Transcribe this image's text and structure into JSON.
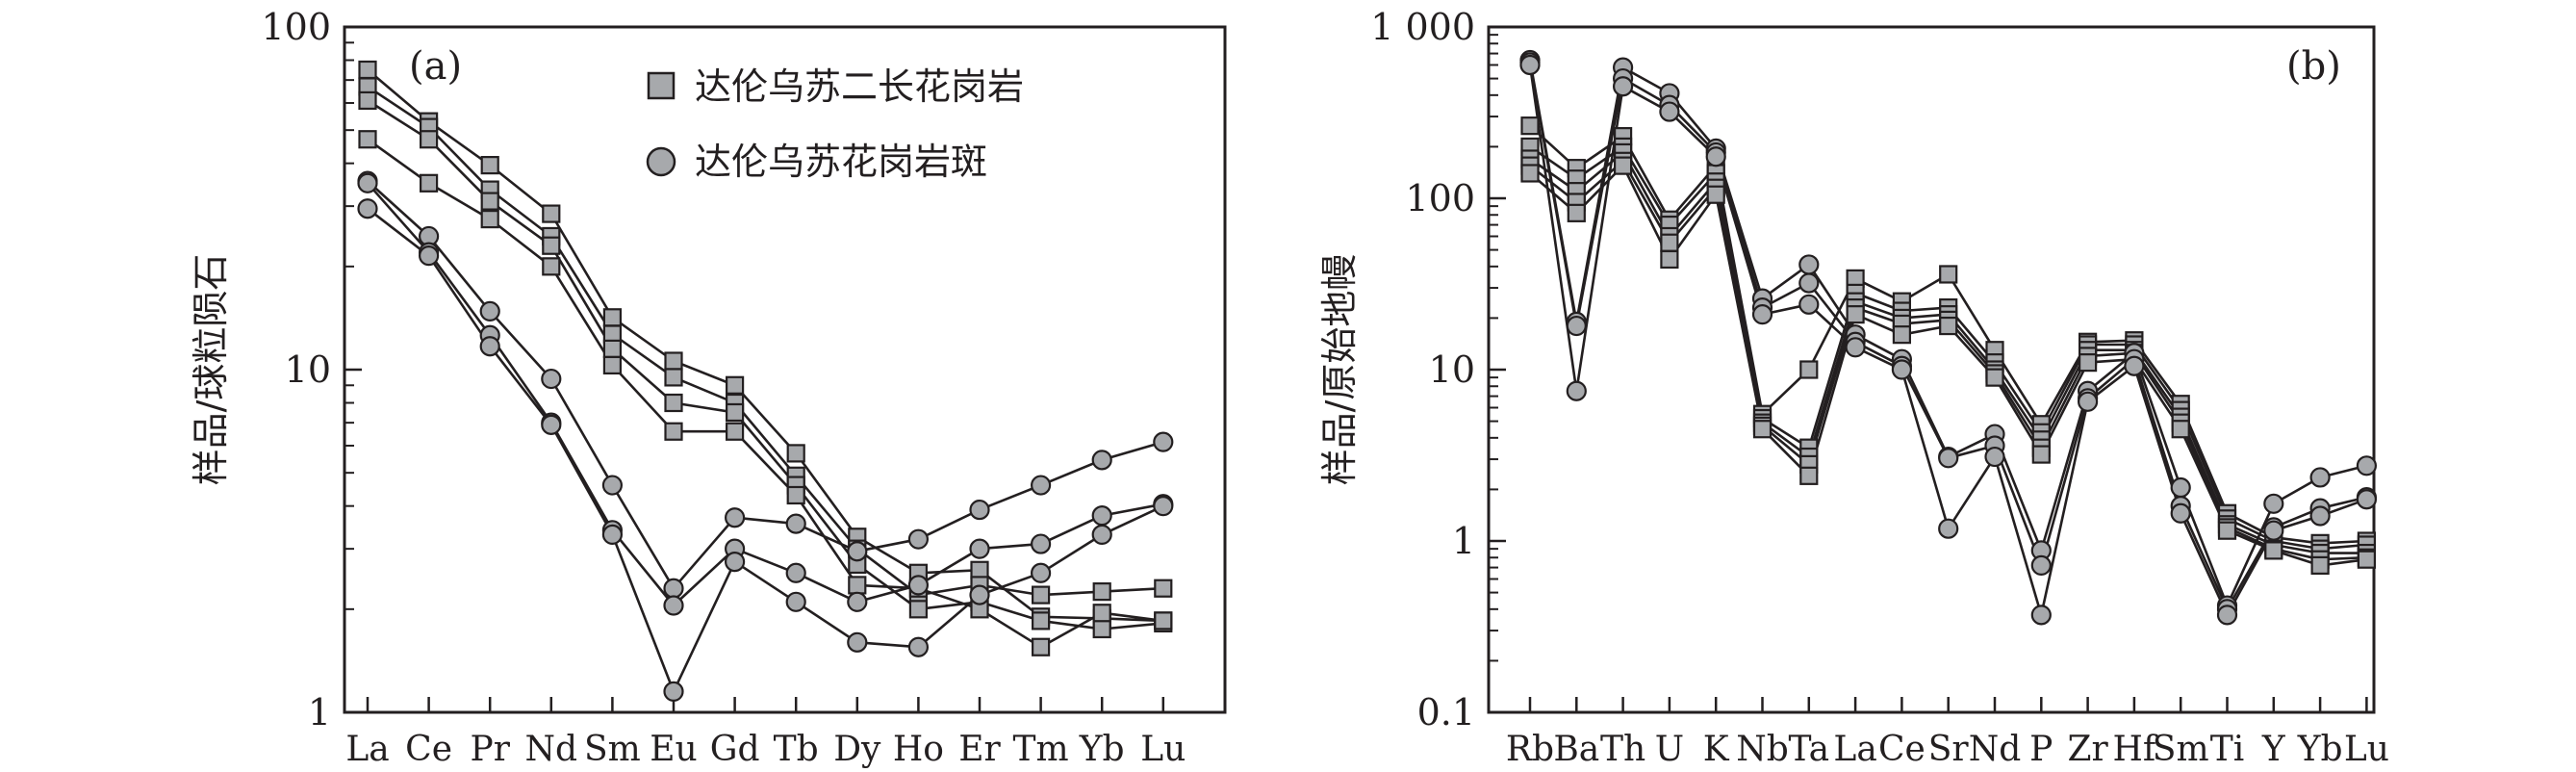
{
  "chart_data": [
    {
      "type": "line",
      "panel_label": "(a)",
      "ylabel": "样品/球粒陨石",
      "y_scale": "log",
      "ylim": [
        1,
        100
      ],
      "y_ticks": [
        1,
        10,
        100
      ],
      "y_tick_labels": [
        "1",
        "10",
        "100"
      ],
      "categories": [
        "La",
        "Ce",
        "Pr",
        "Nd",
        "Sm",
        "Eu",
        "Gd",
        "Tb",
        "Dy",
        "Ho",
        "Er",
        "Tm",
        "Yb",
        "Lu"
      ],
      "legend": [
        {
          "label": "达伦乌苏二长花岗岩",
          "marker": "square"
        },
        {
          "label": "达伦乌苏花岗岩斑",
          "marker": "circle"
        }
      ],
      "series": [
        {
          "group": "square",
          "values": [
            75,
            53,
            39.5,
            28.5,
            14.2,
            10.6,
            9.0,
            5.7,
            3.25,
            2.55,
            2.6,
            1.9,
            1.88,
            1.85
          ]
        },
        {
          "group": "square",
          "values": [
            67,
            51,
            33.5,
            24.5,
            12.7,
            9.5,
            8.0,
            4.9,
            3.0,
            2.2,
            2.35,
            2.2,
            2.25,
            2.3
          ]
        },
        {
          "group": "square",
          "values": [
            61,
            47,
            31.0,
            23.0,
            11.5,
            8.0,
            7.5,
            4.6,
            2.7,
            2.0,
            2.1,
            1.85,
            1.75,
            1.82
          ]
        },
        {
          "group": "square",
          "values": [
            47,
            35,
            27.5,
            20.0,
            10.3,
            6.6,
            6.6,
            4.3,
            2.35,
            2.3,
            2.0,
            1.55,
            1.95,
            1.85
          ]
        },
        {
          "group": "circle",
          "values": [
            35.5,
            24.5,
            14.8,
            9.4,
            4.6,
            2.3,
            3.7,
            3.55,
            2.95,
            3.2,
            3.9,
            4.6,
            5.45,
            6.15
          ]
        },
        {
          "group": "circle",
          "values": [
            35.0,
            22.0,
            12.6,
            7.0,
            3.4,
            2.05,
            3.0,
            2.55,
            2.1,
            2.35,
            3.0,
            3.1,
            3.75,
            4.05
          ]
        },
        {
          "group": "circle",
          "values": [
            29.5,
            21.5,
            11.7,
            6.9,
            3.3,
            1.15,
            2.75,
            2.1,
            1.6,
            1.55,
            2.2,
            2.55,
            3.3,
            4.0
          ]
        }
      ]
    },
    {
      "type": "line",
      "panel_label": "(b)",
      "ylabel": "样品/原始地幔",
      "y_scale": "log",
      "ylim": [
        0.1,
        1000
      ],
      "y_ticks": [
        0.1,
        1,
        10,
        100,
        1000
      ],
      "y_tick_labels": [
        "0.1",
        "1",
        "10",
        "100",
        "1 000"
      ],
      "categories": [
        "Rb",
        "Ba",
        "Th",
        "U",
        "K",
        "Nb",
        "Ta",
        "La",
        "Ce",
        "Sr",
        "Nd",
        "P",
        "Zr",
        "Hf",
        "Sm",
        "Ti",
        "Y",
        "Yb",
        "Lu"
      ],
      "x_tick_labels": [
        "Rb",
        "Ba",
        "Th",
        "U",
        "K",
        "Nb",
        "Ta",
        "La",
        "Ce",
        "Sr",
        "Nd",
        "P",
        "Zr",
        "Hf",
        "Sm",
        "Ti",
        "Y",
        "Yb",
        "Lu"
      ],
      "series": [
        {
          "group": "square",
          "values": [
            265,
            150,
            230,
            75,
            155,
            5.5,
            10.0,
            34,
            25,
            36,
            13,
            4.8,
            14.5,
            14.8,
            6.3,
            1.45,
            1.05,
            0.97,
            1.0
          ]
        },
        {
          "group": "square",
          "values": [
            200,
            130,
            200,
            70,
            140,
            5.2,
            3.5,
            28,
            22,
            23,
            11,
            4.3,
            14,
            14,
            5.8,
            1.35,
            1.0,
            0.9,
            0.95
          ]
        },
        {
          "group": "square",
          "values": [
            170,
            110,
            185,
            60,
            125,
            4.9,
            3.1,
            25,
            20,
            21,
            10,
            3.9,
            13,
            13,
            5.3,
            1.25,
            0.95,
            0.85,
            0.85
          ]
        },
        {
          "group": "square",
          "values": [
            155,
            95,
            165,
            55,
            115,
            4.7,
            2.8,
            23,
            18.5,
            19.5,
            9.5,
            3.5,
            12,
            12.5,
            4.9,
            1.2,
            0.9,
            0.78,
            0.8
          ]
        },
        {
          "group": "square",
          "values": [
            140,
            82,
            155,
            44,
            105,
            4.5,
            2.4,
            21,
            16,
            18,
            9,
            3.2,
            11,
            11.5,
            4.5,
            1.15,
            0.88,
            0.72,
            0.78
          ]
        },
        {
          "group": "circle",
          "values": [
            640,
            19,
            580,
            410,
            195,
            26,
            41,
            16,
            11.5,
            3.1,
            4.2,
            0.88,
            7.5,
            12.5,
            2.05,
            0.42,
            1.65,
            2.35,
            2.75
          ]
        },
        {
          "group": "circle",
          "values": [
            620,
            18,
            500,
            350,
            185,
            23,
            32,
            14.5,
            10.5,
            3.05,
            3.6,
            0.72,
            6.8,
            11.5,
            1.6,
            0.4,
            1.2,
            1.55,
            1.8
          ]
        },
        {
          "group": "circle",
          "values": [
            600,
            7.5,
            450,
            320,
            175,
            21,
            24,
            13.5,
            10,
            1.18,
            3.1,
            0.37,
            6.5,
            10.5,
            1.45,
            0.37,
            1.15,
            1.4,
            1.75
          ]
        }
      ]
    }
  ]
}
